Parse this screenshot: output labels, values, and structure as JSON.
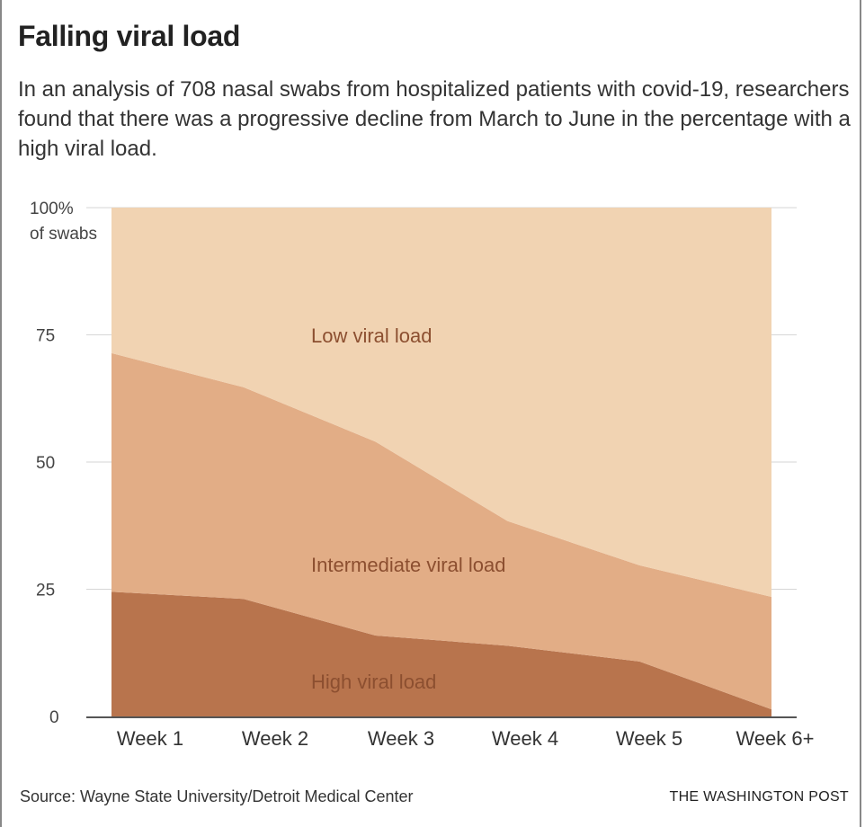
{
  "title": "Falling viral load",
  "subtitle": "In an analysis of 708 nasal swabs from hospitalized patients with covid-19, researchers found that there was a progressive decline from March to June in the percentage with a high viral load.",
  "source": "Source: Wayne State University/Detroit Medical Center",
  "credit": "THE WASHINGTON POST",
  "chart_data": {
    "type": "area",
    "stacked": true,
    "categories": [
      "Week 1",
      "Week 2",
      "Week 3",
      "Week 4",
      "Week 5",
      "Week 6+"
    ],
    "ylabel": "of swabs",
    "ylim": [
      0,
      100
    ],
    "yticks": [
      {
        "value": 100,
        "label": "100%"
      },
      {
        "value": 75,
        "label": "75"
      },
      {
        "value": 50,
        "label": "50"
      },
      {
        "value": 25,
        "label": "25"
      },
      {
        "value": 0,
        "label": "0"
      }
    ],
    "grid": true,
    "series": [
      {
        "name": "High viral load",
        "color": "#b8744d",
        "values": [
          24.5,
          23.1,
          15.9,
          13.9,
          10.8,
          1.4
        ]
      },
      {
        "name": "Intermediate viral load",
        "color": "#e2ad86",
        "values": [
          46.9,
          41.6,
          38.1,
          24.5,
          18.9,
          22.1
        ]
      },
      {
        "name": "Low viral load",
        "color": "#f1d3b2",
        "values": [
          28.6,
          35.3,
          46.0,
          61.6,
          70.3,
          76.5
        ]
      }
    ]
  }
}
